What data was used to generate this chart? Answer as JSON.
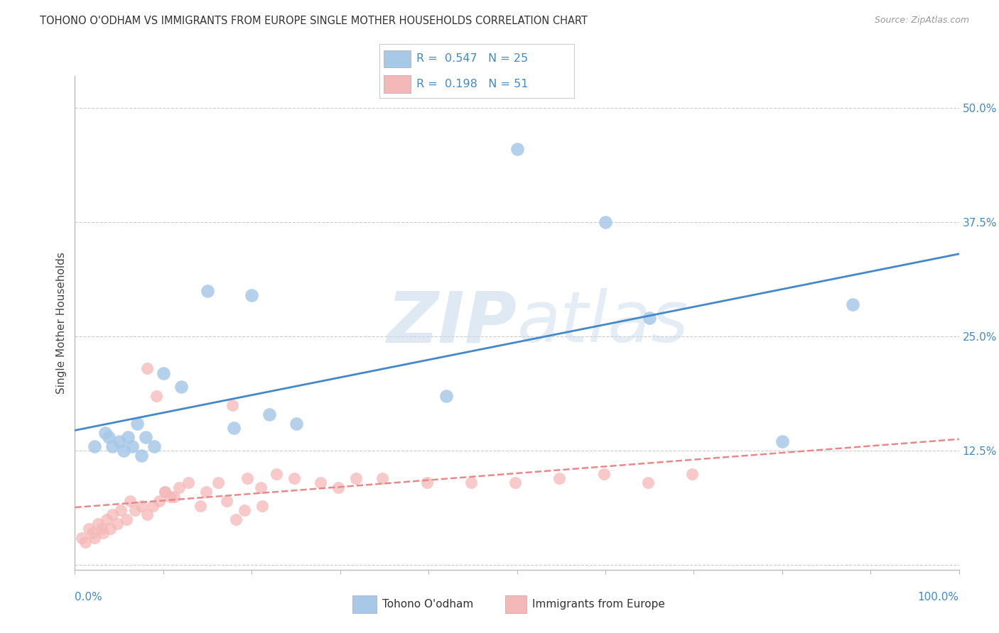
{
  "title": "TOHONO O'ODHAM VS IMMIGRANTS FROM EUROPE SINGLE MOTHER HOUSEHOLDS CORRELATION CHART",
  "source": "Source: ZipAtlas.com",
  "ylabel": "Single Mother Households",
  "ytick_positions": [
    0.0,
    0.125,
    0.25,
    0.375,
    0.5
  ],
  "ytick_labels": [
    "",
    "12.5%",
    "25.0%",
    "37.5%",
    "50.0%"
  ],
  "legend_blue_r": "0.547",
  "legend_blue_n": "25",
  "legend_pink_r": "0.198",
  "legend_pink_n": "51",
  "blue_scatter_color": "#a8c8e8",
  "pink_scatter_color": "#f5b8b8",
  "blue_line_color": "#4488cc",
  "pink_line_color": "#e88888",
  "axis_label_color": "#4488cc",
  "title_color": "#333333",
  "source_color": "#999999",
  "grid_color": "#cccccc",
  "background_color": "#ffffff",
  "blue_scatter_x": [
    0.022,
    0.034,
    0.038,
    0.042,
    0.05,
    0.055,
    0.06,
    0.065,
    0.07,
    0.075,
    0.08,
    0.09,
    0.1,
    0.12,
    0.15,
    0.18,
    0.2,
    0.22,
    0.25,
    0.42,
    0.5,
    0.6,
    0.65,
    0.8,
    0.88
  ],
  "blue_scatter_y": [
    0.13,
    0.145,
    0.14,
    0.13,
    0.135,
    0.125,
    0.14,
    0.13,
    0.155,
    0.12,
    0.14,
    0.13,
    0.21,
    0.195,
    0.3,
    0.15,
    0.295,
    0.165,
    0.155,
    0.185,
    0.455,
    0.375,
    0.27,
    0.135,
    0.285
  ],
  "pink_scatter_x": [
    0.008,
    0.012,
    0.016,
    0.02,
    0.022,
    0.026,
    0.03,
    0.032,
    0.036,
    0.04,
    0.042,
    0.048,
    0.052,
    0.058,
    0.062,
    0.068,
    0.075,
    0.082,
    0.088,
    0.095,
    0.102,
    0.108,
    0.118,
    0.128,
    0.148,
    0.162,
    0.178,
    0.195,
    0.21,
    0.228,
    0.248,
    0.278,
    0.298,
    0.318,
    0.348,
    0.398,
    0.448,
    0.498,
    0.548,
    0.598,
    0.648,
    0.698,
    0.182,
    0.192,
    0.212,
    0.082,
    0.092,
    0.102,
    0.112,
    0.172,
    0.142
  ],
  "pink_scatter_y": [
    0.03,
    0.025,
    0.04,
    0.035,
    0.03,
    0.045,
    0.04,
    0.035,
    0.05,
    0.04,
    0.055,
    0.045,
    0.06,
    0.05,
    0.07,
    0.06,
    0.065,
    0.055,
    0.065,
    0.07,
    0.08,
    0.075,
    0.085,
    0.09,
    0.08,
    0.09,
    0.175,
    0.095,
    0.085,
    0.1,
    0.095,
    0.09,
    0.085,
    0.095,
    0.095,
    0.09,
    0.09,
    0.09,
    0.095,
    0.1,
    0.09,
    0.1,
    0.05,
    0.06,
    0.065,
    0.215,
    0.185,
    0.08,
    0.075,
    0.07,
    0.065
  ]
}
